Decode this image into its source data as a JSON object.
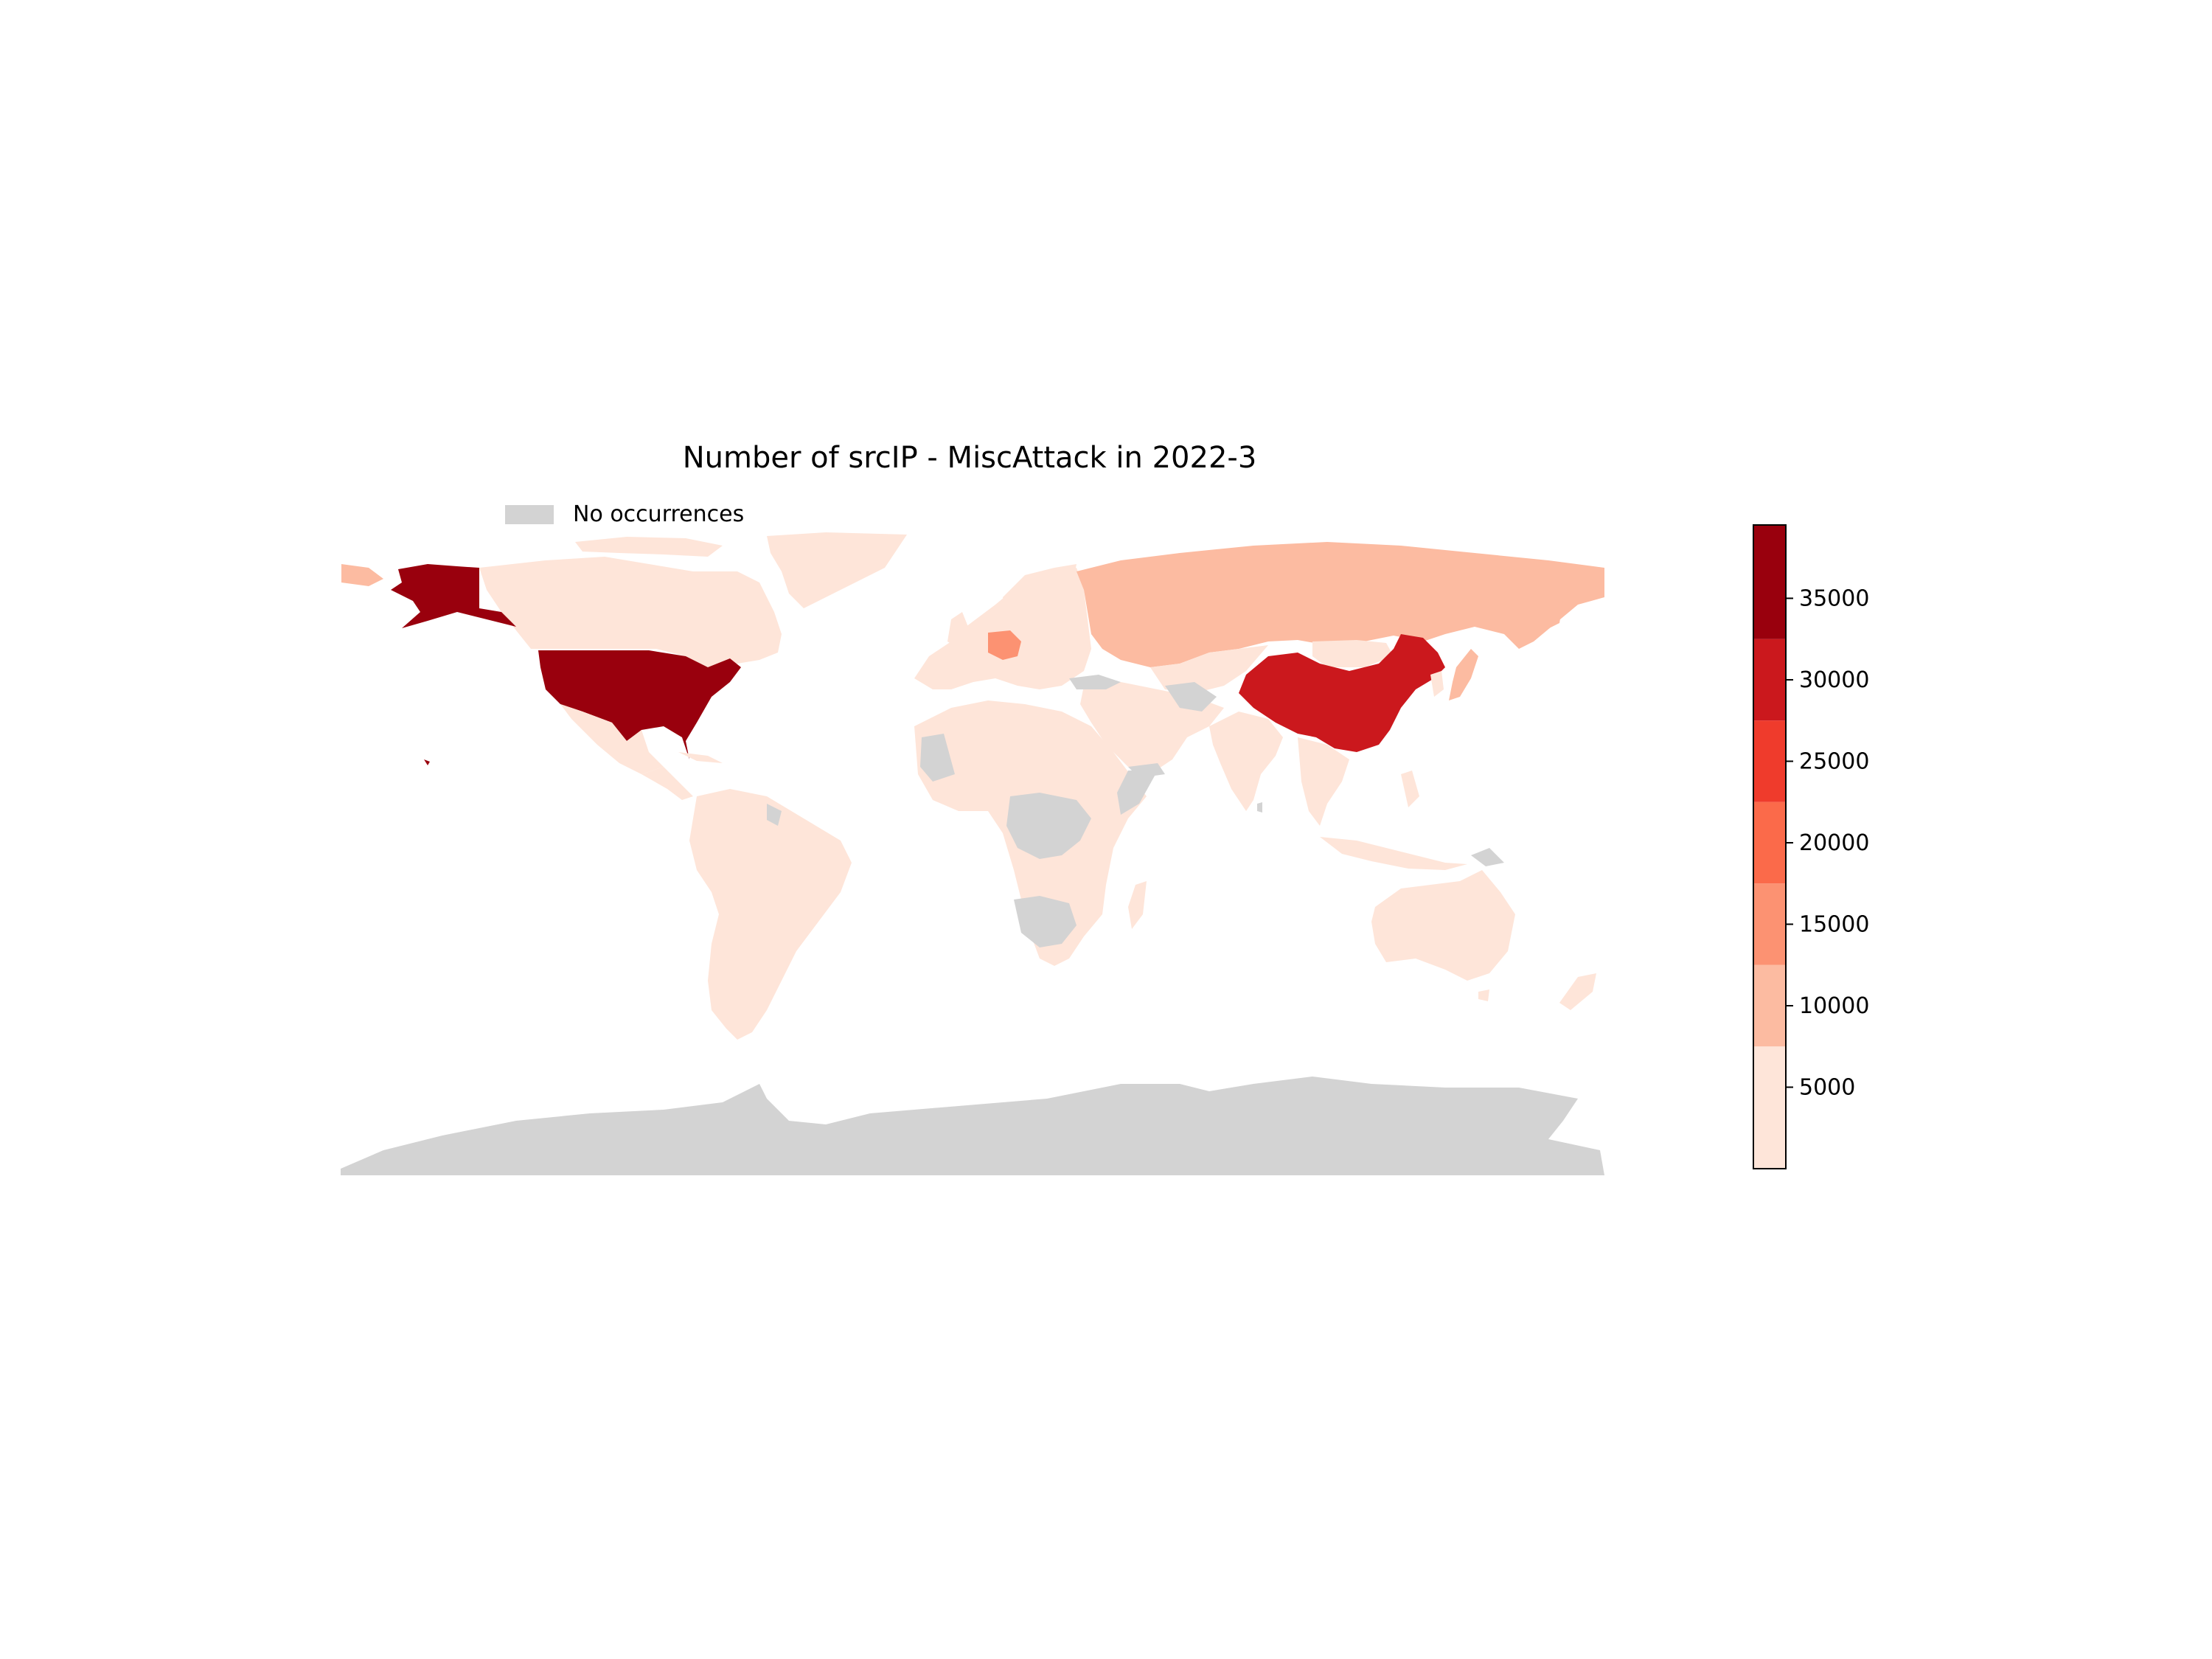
{
  "title": "Number of srcIP - MiscAttack in 2022-3",
  "legend": {
    "label": "No occurrences",
    "color": "#d3d3d3"
  },
  "map": {
    "type": "choropleth",
    "projection": "equirectangular",
    "colormap": "Reds",
    "no_data_color": "#d3d3d3",
    "countries": [
      {
        "name": "United States",
        "bin": 6,
        "color": "#99000d"
      },
      {
        "name": "China",
        "bin": 5,
        "color": "#cb181d"
      },
      {
        "name": "Russia",
        "bin": 1,
        "color": "#fcbba1"
      },
      {
        "name": "Germany",
        "bin": 2,
        "color": "#fc9272"
      },
      {
        "name": "Japan",
        "bin": 1,
        "color": "#fcbba1"
      },
      {
        "name": "Canada",
        "bin": 0,
        "color": "#fee5d9"
      },
      {
        "name": "Mexico",
        "bin": 0,
        "color": "#fee5d9"
      },
      {
        "name": "Brazil",
        "bin": 0,
        "color": "#fee5d9"
      },
      {
        "name": "Australia",
        "bin": 0,
        "color": "#fee5d9"
      },
      {
        "name": "India",
        "bin": 0,
        "color": "#fee5d9"
      },
      {
        "name": "Antarctica",
        "bin": null,
        "color": "#d3d3d3"
      }
    ]
  },
  "colorbar": {
    "bins": [
      {
        "color": "#fee5d9"
      },
      {
        "color": "#fcbba1"
      },
      {
        "color": "#fc9272"
      },
      {
        "color": "#fb6a4a"
      },
      {
        "color": "#ef3b2c"
      },
      {
        "color": "#cb181d"
      },
      {
        "color": "#99000d"
      }
    ],
    "min": 0,
    "max": 39500,
    "ticks": [
      5000,
      10000,
      15000,
      20000,
      25000,
      30000,
      35000
    ],
    "tick_labels": [
      "5000",
      "10000",
      "15000",
      "20000",
      "25000",
      "30000",
      "35000"
    ]
  }
}
